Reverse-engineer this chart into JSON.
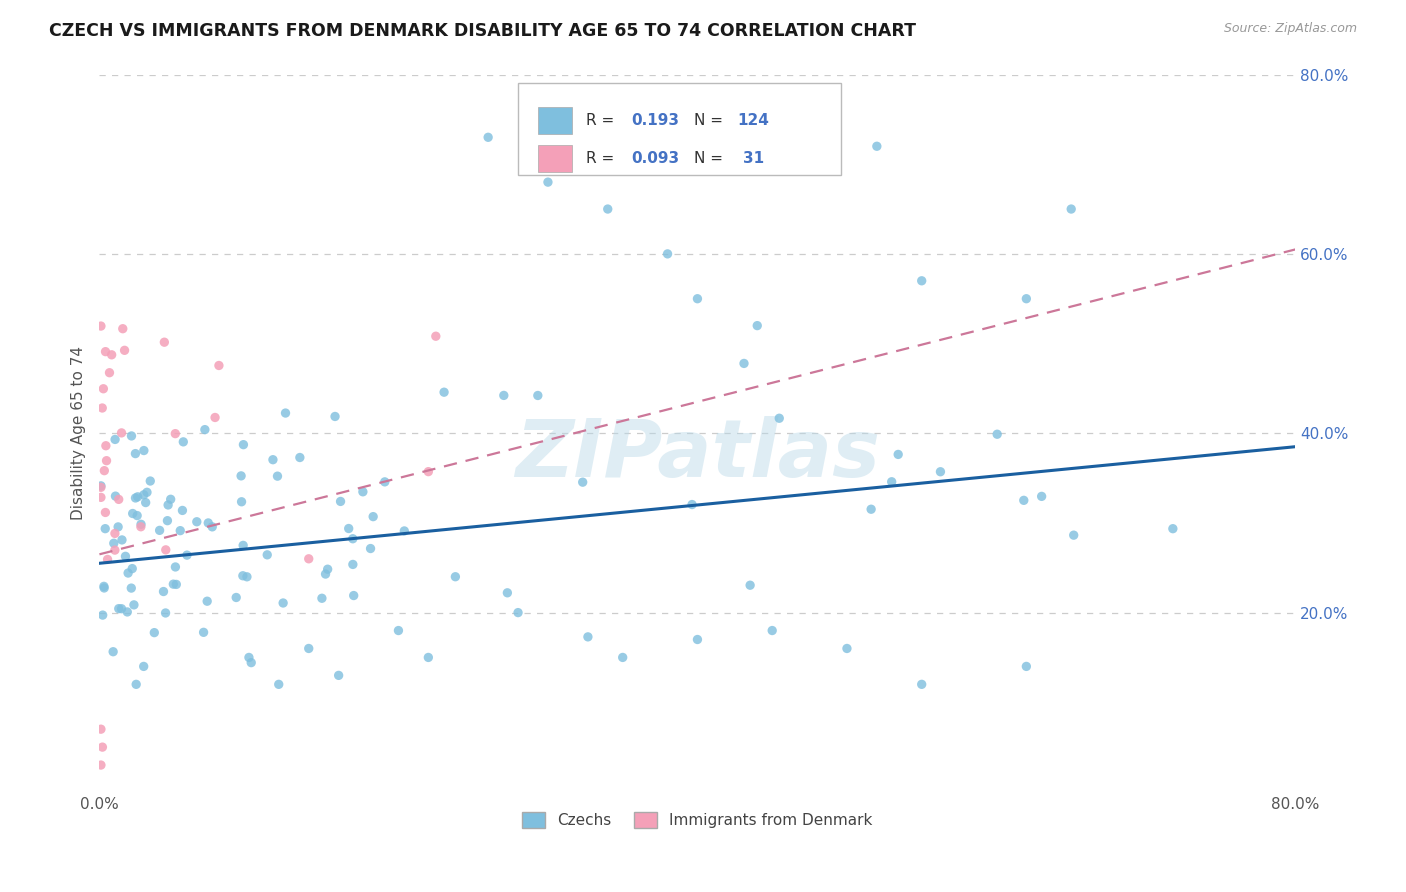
{
  "title": "CZECH VS IMMIGRANTS FROM DENMARK DISABILITY AGE 65 TO 74 CORRELATION CHART",
  "source": "Source: ZipAtlas.com",
  "ylabel": "Disability Age 65 to 74",
  "xlim": [
    0.0,
    0.8
  ],
  "ylim": [
    0.0,
    0.8
  ],
  "xtick_vals": [
    0.0,
    0.8
  ],
  "xtick_labels": [
    "0.0%",
    "80.0%"
  ],
  "ytick_positions": [
    0.2,
    0.4,
    0.6,
    0.8
  ],
  "ytick_labels": [
    "20.0%",
    "40.0%",
    "60.0%",
    "80.0%"
  ],
  "grid_color": "#cccccc",
  "watermark": "ZIPatlas",
  "blue_color": "#7fbfde",
  "pink_color": "#f4a0b8",
  "blue_line_color": "#1a5fa0",
  "pink_line_color": "#cc7799",
  "blue_line_start_y": 0.255,
  "blue_line_end_y": 0.385,
  "denmark_line_start_y": 0.265,
  "denmark_line_end_y": 0.605
}
